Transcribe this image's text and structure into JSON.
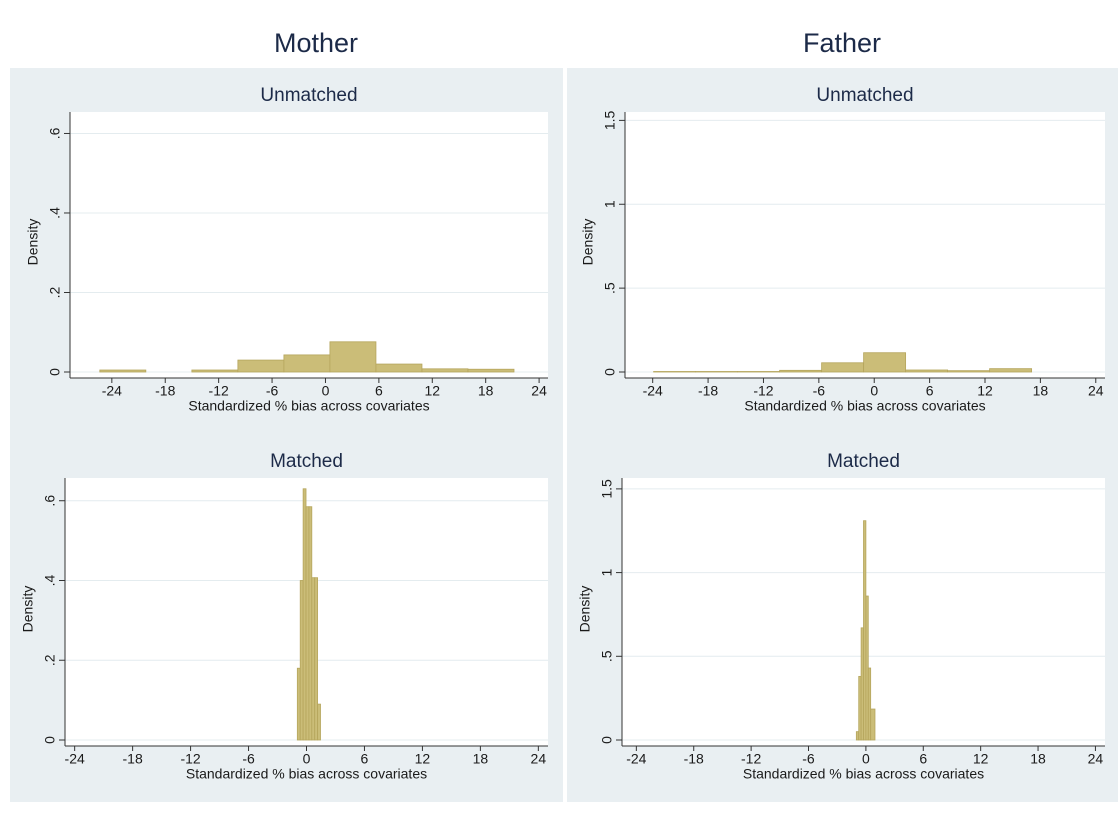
{
  "column_titles": [
    "Mother",
    "Father"
  ],
  "chart_data": [
    {
      "type": "histogram",
      "title": "Unmatched",
      "xlabel": "Standardized % bias across covariates",
      "ylabel": "Density",
      "bins": [
        -25.35,
        -20.18,
        -15.01,
        -9.84,
        -4.67,
        0.5,
        5.67,
        10.84,
        16.01,
        21.18
      ],
      "values": [
        0.005,
        0,
        0.005,
        0.03,
        0.043,
        0.076,
        0.02,
        0.008,
        0.007
      ],
      "color": "#cbbd78",
      "xlim": [
        -28.7,
        25
      ],
      "ylim": [
        0,
        0.654
      ],
      "xticks": [
        -24,
        -18,
        -12,
        -6,
        0,
        6,
        12,
        18,
        24
      ],
      "yticks": [
        0,
        {
          "value": 0.2,
          "label": ".2"
        },
        {
          "value": 0.4,
          "label": ".4"
        },
        {
          "value": 0.6,
          "label": ".6"
        }
      ],
      "grid": true
    },
    {
      "type": "histogram",
      "title": "Matched",
      "xlabel": "Standardized % bias across covariates",
      "ylabel": "Density",
      "bins": [
        -0.95,
        -0.65,
        -0.35,
        -0.05,
        0.25,
        0.55,
        0.85,
        1.15,
        1.45
      ],
      "values": [
        0.18,
        0.4,
        0.63,
        0.585,
        0.585,
        0.407,
        0.407,
        0.09
      ],
      "color": "#cbbd78",
      "xlim": [
        -25,
        25
      ],
      "ylim": [
        0,
        0.657
      ],
      "xticks": [
        -24,
        -18,
        -12,
        -6,
        0,
        6,
        12,
        18,
        24
      ],
      "yticks": [
        0,
        {
          "value": 0.2,
          "label": ".2"
        },
        {
          "value": 0.4,
          "label": ".4"
        },
        {
          "value": 0.6,
          "label": ".6"
        }
      ],
      "grid": true
    },
    {
      "type": "histogram",
      "title": "Unmatched",
      "xlabel": "Standardized % bias across covariates",
      "ylabel": "Density",
      "bins": [
        -23.9,
        -19.35,
        -14.8,
        -10.25,
        -5.7,
        -1.15,
        3.4,
        7.95,
        12.5,
        17.05
      ],
      "values": [
        0.003,
        0.003,
        0.003,
        0.01,
        0.055,
        0.115,
        0.012,
        0.008,
        0.02
      ],
      "color": "#cbbd78",
      "xlim": [
        -27,
        25
      ],
      "ylim": [
        0,
        1.55
      ],
      "xticks": [
        -24,
        -18,
        -12,
        -6,
        0,
        6,
        12,
        18,
        24
      ],
      "yticks": [
        0,
        {
          "value": 0.5,
          "label": ".5"
        },
        1,
        1.5
      ],
      "grid": true
    },
    {
      "type": "histogram",
      "title": "Matched",
      "xlabel": "Standardized % bias across covariates",
      "ylabel": "Density",
      "bins": [
        -1,
        -0.75,
        -0.5,
        -0.25,
        0,
        0.25,
        0.5,
        0.95
      ],
      "values": [
        0.05,
        0.38,
        0.67,
        1.31,
        0.86,
        0.43,
        0.185
      ],
      "color": "#cbbd78",
      "xlim": [
        -25.5,
        25
      ],
      "ylim": [
        0,
        1.565
      ],
      "xticks": [
        -24,
        -18,
        -12,
        -6,
        0,
        6,
        12,
        18,
        24
      ],
      "yticks": [
        0,
        {
          "value": 0.5,
          "label": ".5"
        },
        1,
        1.5
      ],
      "grid": true
    }
  ]
}
